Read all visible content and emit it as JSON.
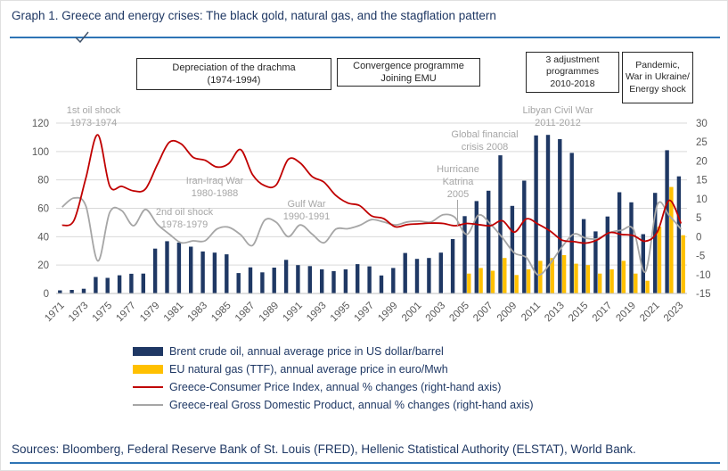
{
  "header": {
    "title": "Graph 1. Greece and energy crises: The black gold, natural gas, and the stagflation pattern"
  },
  "footer": {
    "sources": "Sources: Bloomberg, Federal Reserve Bank of St. Louis (FRED), Hellenic Statistical Authority (ELSTAT), World Bank."
  },
  "colors": {
    "accent_rule": "#2E74B5",
    "title_text": "#1F3864",
    "brent_bar": "#1F3864",
    "gas_bar": "#FFC000",
    "cpi_line": "#C00000",
    "gdp_line": "#A6A6A6",
    "annotation_gray": "#A6A6A6",
    "gridline": "#D9D9D9"
  },
  "annotations": {
    "boxes": [
      {
        "lines": [
          "Depreciation of the drachma",
          "(1974-1994)"
        ]
      },
      {
        "lines": [
          "Convergence programme",
          "Joining EMU"
        ]
      },
      {
        "lines": [
          "3 adjustment",
          "programmes",
          "2010-2018"
        ]
      },
      {
        "lines": [
          "Pandemic,",
          "War in Ukraine/",
          "Energy shock"
        ]
      }
    ],
    "events": [
      {
        "lines": [
          "1st oil shock",
          "1973-1974"
        ]
      },
      {
        "lines": [
          "Iran-Iraq War",
          "1980-1988"
        ]
      },
      {
        "lines": [
          "2nd oil shock",
          "1978-1979"
        ]
      },
      {
        "lines": [
          "Gulf War",
          "1990-1991"
        ]
      },
      {
        "lines": [
          "Hurricane",
          "Katrina",
          "2005"
        ]
      },
      {
        "lines": [
          "Global financial",
          "crisis 2008"
        ]
      },
      {
        "lines": [
          "Libyan Civil War",
          "2011-2012"
        ]
      }
    ]
  },
  "legend": {
    "items": [
      {
        "marker": "bar",
        "color": "#1F3864",
        "label": "Brent crude oil, annual average price in US dollar/barrel"
      },
      {
        "marker": "bar",
        "color": "#FFC000",
        "label": "EU natural gas (TTF), annual average price in euro/Mwh"
      },
      {
        "marker": "line",
        "color": "#C00000",
        "label": "Greece-Consumer Price Index, annual % changes (right-hand axis)"
      },
      {
        "marker": "line",
        "color": "#A6A6A6",
        "label": "Greece-real Gross Domestic Product, annual % changes (right-hand axis)"
      }
    ]
  },
  "chart_data": {
    "type": "combo",
    "x": [
      1971,
      1972,
      1973,
      1974,
      1975,
      1976,
      1977,
      1978,
      1979,
      1980,
      1981,
      1982,
      1983,
      1984,
      1985,
      1986,
      1987,
      1988,
      1989,
      1990,
      1991,
      1992,
      1993,
      1994,
      1995,
      1996,
      1997,
      1998,
      1999,
      2000,
      2001,
      2002,
      2003,
      2004,
      2005,
      2006,
      2007,
      2008,
      2009,
      2010,
      2011,
      2012,
      2013,
      2014,
      2015,
      2016,
      2017,
      2018,
      2019,
      2020,
      2021,
      2022,
      2023
    ],
    "x_tick_labels": [
      "1971",
      "1973",
      "1975",
      "1977",
      "1979",
      "1981",
      "1983",
      "1985",
      "1987",
      "1989",
      "1991",
      "1993",
      "1995",
      "1997",
      "1999",
      "2001",
      "2003",
      "2005",
      "2007",
      "2009",
      "2011",
      "2013",
      "2015",
      "2017",
      "2019",
      "2021",
      "2023"
    ],
    "axes": {
      "left": {
        "min": 0,
        "max": 120,
        "ticks": [
          0,
          20,
          40,
          60,
          80,
          100,
          120
        ]
      },
      "right": {
        "min": -15,
        "max": 30,
        "ticks": [
          -15,
          -10,
          -5,
          0,
          5,
          10,
          15,
          20,
          25,
          30
        ]
      }
    },
    "grid": true,
    "legend_position": "bottom",
    "series": [
      {
        "id": "brent",
        "type": "bar",
        "axis": "left",
        "color": "#1F3864",
        "name": "Brent crude oil, annual average price in US dollar/barrel",
        "values": [
          2.2,
          2.5,
          3.3,
          11.6,
          11.0,
          12.8,
          13.9,
          14.0,
          31.6,
          36.8,
          35.9,
          33.0,
          29.6,
          28.8,
          27.6,
          14.4,
          18.4,
          14.9,
          18.2,
          23.7,
          20.0,
          19.3,
          17.0,
          15.8,
          17.0,
          20.7,
          19.1,
          12.7,
          18.0,
          28.5,
          24.4,
          25.0,
          28.8,
          38.3,
          54.5,
          65.1,
          72.4,
          97.3,
          61.7,
          79.5,
          111.3,
          111.7,
          108.7,
          99.0,
          52.4,
          43.7,
          54.2,
          71.3,
          64.2,
          41.8,
          70.9,
          100.9,
          82.5
        ]
      },
      {
        "id": "gas",
        "type": "bar",
        "axis": "left",
        "color": "#FFC000",
        "name": "EU natural gas (TTF), annual average price in euro/Mwh",
        "values": [
          null,
          null,
          null,
          null,
          null,
          null,
          null,
          null,
          null,
          null,
          null,
          null,
          null,
          null,
          null,
          null,
          null,
          null,
          null,
          null,
          null,
          null,
          null,
          null,
          null,
          null,
          null,
          null,
          null,
          null,
          null,
          null,
          null,
          null,
          14,
          18,
          16,
          25,
          13,
          17,
          23,
          25,
          27,
          21,
          20,
          14,
          17,
          23,
          14,
          9,
          47,
          75,
          41
        ]
      },
      {
        "id": "cpi",
        "type": "line",
        "axis": "right",
        "color": "#C00000",
        "name": "Greece-Consumer Price Index, annual % changes (right-hand axis)",
        "values": [
          3.0,
          4.3,
          15.5,
          26.9,
          13.4,
          13.3,
          12.1,
          12.6,
          19.0,
          24.9,
          24.5,
          21.0,
          20.2,
          18.4,
          19.3,
          23.0,
          16.4,
          13.5,
          13.7,
          20.4,
          19.5,
          15.9,
          14.4,
          10.9,
          8.9,
          8.2,
          5.5,
          4.8,
          2.6,
          3.2,
          3.4,
          3.6,
          3.5,
          2.9,
          3.5,
          3.2,
          2.9,
          4.2,
          1.2,
          4.7,
          3.3,
          1.5,
          -0.9,
          -1.3,
          -1.7,
          -0.8,
          1.1,
          0.6,
          0.3,
          -1.2,
          1.2,
          9.6,
          3.5
        ]
      },
      {
        "id": "gdp",
        "type": "line",
        "axis": "right",
        "color": "#A6A6A6",
        "name": "Greece-real Gross Domestic Product, annual % changes (right-hand axis)",
        "values": [
          7.8,
          10.2,
          8.1,
          -6.4,
          6.4,
          6.9,
          2.9,
          7.2,
          3.3,
          0.7,
          -1.6,
          -1.1,
          -1.1,
          2.0,
          2.5,
          0.5,
          -2.3,
          4.3,
          3.8,
          0.0,
          3.1,
          0.7,
          -1.6,
          2.0,
          2.1,
          3.0,
          4.5,
          3.9,
          3.1,
          3.9,
          4.1,
          3.9,
          5.8,
          5.1,
          0.6,
          5.7,
          3.3,
          -0.3,
          -4.3,
          -5.5,
          -10.1,
          -7.1,
          -2.7,
          0.7,
          -0.4,
          -0.5,
          1.1,
          1.7,
          1.9,
          -9.3,
          8.4,
          5.6,
          2.0
        ]
      }
    ]
  }
}
